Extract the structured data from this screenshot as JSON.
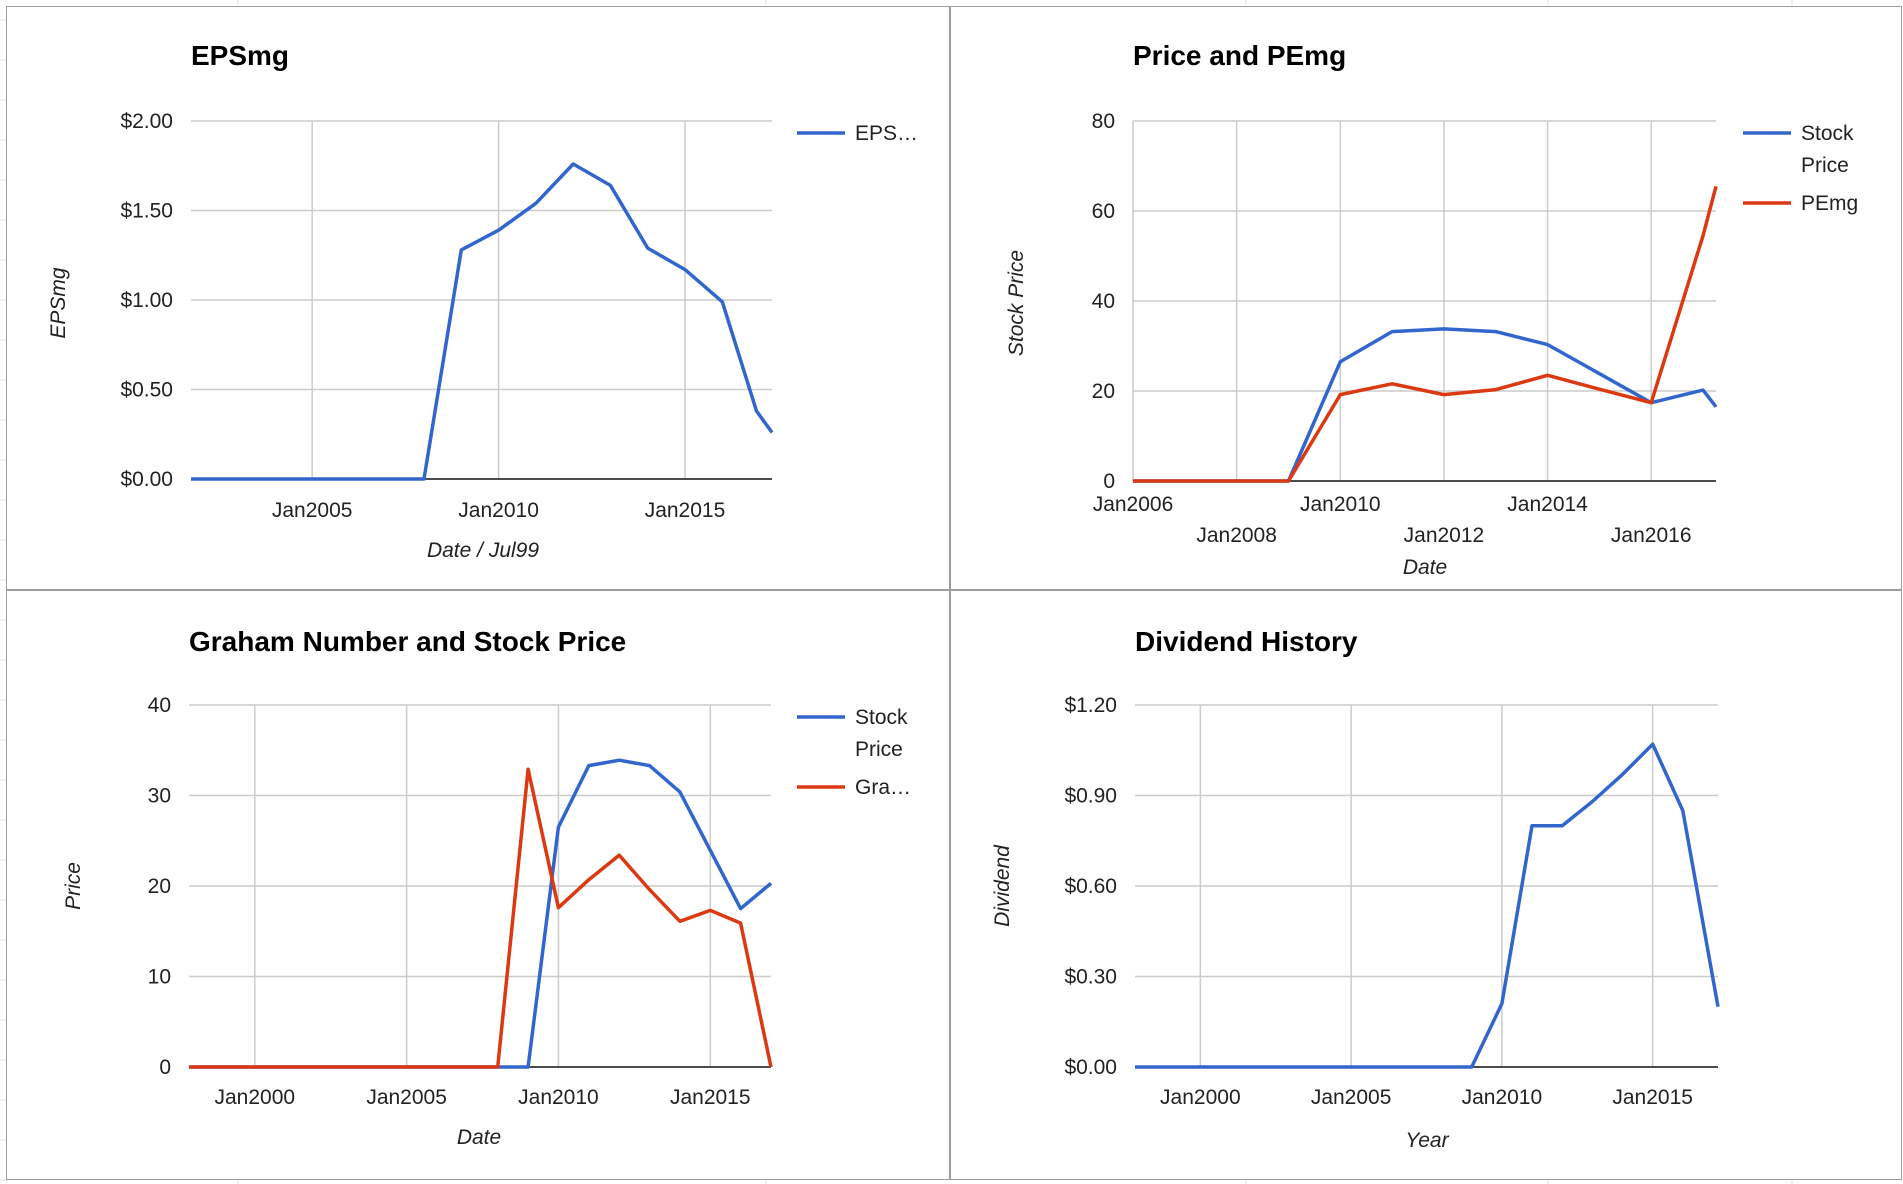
{
  "colors": {
    "blue": "#3366cc",
    "red": "#dc3912",
    "grid": "#cccccc",
    "axis": "#333333",
    "text": "#222222",
    "sheet_border": "#9e9e9e",
    "sheet_grid": "#e2e2e2"
  },
  "chart_data": [
    {
      "type": "line",
      "title": "EPSmg",
      "xlabel": "Date / Jul99",
      "ylabel": "EPSmg",
      "x_ticks": [
        "Jan2005",
        "Jan2010",
        "Jan2015"
      ],
      "y_ticks": [
        "$0.00",
        "$0.50",
        "$1.00",
        "$1.50",
        "$2.00"
      ],
      "xlim": [
        "2001-10",
        "2017-05"
      ],
      "ylim": [
        0,
        2
      ],
      "grid": true,
      "legend": "right",
      "series": [
        {
          "name": "EPS…",
          "color": "#3366cc",
          "points": [
            [
              "2001-10",
              0
            ],
            [
              "2008-01",
              0
            ],
            [
              "2009-01",
              1.28
            ],
            [
              "2010-01",
              1.39
            ],
            [
              "2011-01",
              1.54
            ],
            [
              "2012-01",
              1.76
            ],
            [
              "2013-01",
              1.64
            ],
            [
              "2014-01",
              1.29
            ],
            [
              "2015-01",
              1.17
            ],
            [
              "2016-01",
              0.99
            ],
            [
              "2016-12",
              0.38
            ],
            [
              "2017-05",
              0.26
            ]
          ]
        }
      ]
    },
    {
      "type": "line",
      "title": "Price and PEmg",
      "xlabel": "Date",
      "ylabel": "Stock Price",
      "x_ticks": [
        "Jan2006",
        "Jan2008",
        "Jan2010",
        "Jan2012",
        "Jan2014",
        "Jan2016"
      ],
      "y_ticks": [
        "0",
        "20",
        "40",
        "60",
        "80"
      ],
      "xlim": [
        "2006-01",
        "2017-04"
      ],
      "ylim": [
        0,
        80
      ],
      "grid": true,
      "legend": "right",
      "series": [
        {
          "name": "Stock Price",
          "color": "#3366cc",
          "points": [
            [
              "2006-01",
              0
            ],
            [
              "2009-01",
              0
            ],
            [
              "2010-01",
              26.5
            ],
            [
              "2011-01",
              33.2
            ],
            [
              "2012-01",
              33.8
            ],
            [
              "2013-01",
              33.2
            ],
            [
              "2014-01",
              30.3
            ],
            [
              "2016-01",
              17.4
            ],
            [
              "2017-01",
              20.2
            ],
            [
              "2017-04",
              16.5
            ]
          ]
        },
        {
          "name": "PEmg",
          "color": "#dc3912",
          "points": [
            [
              "2006-01",
              0
            ],
            [
              "2009-01",
              0
            ],
            [
              "2010-01",
              19.2
            ],
            [
              "2011-01",
              21.6
            ],
            [
              "2012-01",
              19.2
            ],
            [
              "2013-01",
              20.3
            ],
            [
              "2014-01",
              23.5
            ],
            [
              "2015-01",
              20.4
            ],
            [
              "2016-01",
              17.4
            ],
            [
              "2017-01",
              54.5
            ],
            [
              "2017-04",
              65.5
            ]
          ]
        }
      ]
    },
    {
      "type": "line",
      "title": "Graham Number and Stock Price",
      "xlabel": "Date",
      "ylabel": "Price",
      "x_ticks": [
        "Jan2000",
        "Jan2005",
        "Jan2010",
        "Jan2015"
      ],
      "y_ticks": [
        "0",
        "10",
        "20",
        "30",
        "40"
      ],
      "xlim": [
        "1997-11",
        "2017-01"
      ],
      "ylim": [
        0,
        40
      ],
      "grid": true,
      "legend": "right",
      "series": [
        {
          "name": "Stock Price",
          "color": "#3366cc",
          "points": [
            [
              "1997-11",
              0
            ],
            [
              "2009-01",
              0
            ],
            [
              "2010-01",
              26.5
            ],
            [
              "2011-01",
              33.3
            ],
            [
              "2012-01",
              33.9
            ],
            [
              "2013-01",
              33.3
            ],
            [
              "2014-01",
              30.4
            ],
            [
              "2016-01",
              17.5
            ],
            [
              "2017-01",
              20.3
            ]
          ]
        },
        {
          "name": "Gra…",
          "color": "#dc3912",
          "points": [
            [
              "1997-11",
              0
            ],
            [
              "2008-01",
              0
            ],
            [
              "2009-01",
              32.9
            ],
            [
              "2010-01",
              17.6
            ],
            [
              "2011-01",
              20.7
            ],
            [
              "2012-01",
              23.4
            ],
            [
              "2013-01",
              19.6
            ],
            [
              "2014-01",
              16.1
            ],
            [
              "2015-01",
              17.3
            ],
            [
              "2016-01",
              15.9
            ],
            [
              "2017-01",
              0
            ]
          ]
        }
      ]
    },
    {
      "type": "line",
      "title": "Dividend History",
      "xlabel": "Year",
      "ylabel": "Dividend",
      "x_ticks": [
        "Jan2000",
        "Jan2005",
        "Jan2010",
        "Jan2015"
      ],
      "y_ticks": [
        "$0.00",
        "$0.30",
        "$0.60",
        "$0.90",
        "$1.20"
      ],
      "xlim": [
        "1997-11",
        "2017-03"
      ],
      "ylim": [
        0,
        1.2
      ],
      "grid": true,
      "legend": "none",
      "series": [
        {
          "name": "",
          "color": "#3366cc",
          "points": [
            [
              "1997-11",
              0
            ],
            [
              "2009-01",
              0
            ],
            [
              "2010-01",
              0.21
            ],
            [
              "2011-01",
              0.8
            ],
            [
              "2012-01",
              0.8
            ],
            [
              "2013-01",
              0.88
            ],
            [
              "2014-01",
              0.97
            ],
            [
              "2015-01",
              1.07
            ],
            [
              "2016-01",
              0.85
            ],
            [
              "2017-03",
              0.2
            ]
          ]
        }
      ]
    }
  ]
}
